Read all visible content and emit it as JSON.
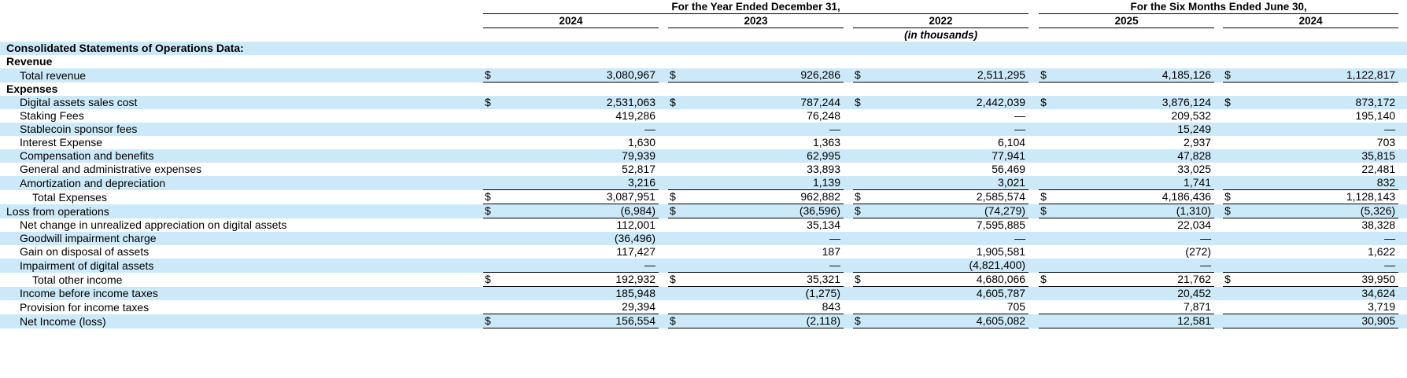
{
  "dollar_glyph": "$",
  "colors": {
    "row_highlight": "#cbe9f8",
    "rule_line": "#000000",
    "text": "#000000"
  },
  "header": {
    "group1": "For the Year Ended December 31,",
    "group2": "For the Six Months Ended June 30,",
    "years_group1": [
      "2024",
      "2023",
      "2022"
    ],
    "years_group2": [
      "2025",
      "2024"
    ],
    "units_note": "(in thousands)"
  },
  "columns": [
    "Year Ended Dec 31, 2024",
    "Year Ended Dec 31, 2023",
    "Year Ended Dec 31, 2022",
    "Six Months Ended Jun 30, 2025",
    "Six Months Ended Jun 30, 2024"
  ],
  "rows": [
    {
      "label": "Consolidated Statements of Operations Data:",
      "indent": 0,
      "bold": true,
      "shaded": true,
      "values": null,
      "dollars": null,
      "rule": false
    },
    {
      "label": "Revenue",
      "indent": 0,
      "bold": true,
      "shaded": false,
      "values": null,
      "dollars": null,
      "rule": false
    },
    {
      "label": "Total revenue",
      "indent": 1,
      "bold": false,
      "shaded": true,
      "values": [
        "3,080,967",
        "926,286",
        "2,511,295",
        "4,185,126",
        "1,122,817"
      ],
      "dollars": [
        1,
        1,
        1,
        1,
        1
      ],
      "rule": true
    },
    {
      "label": "Expenses",
      "indent": 0,
      "bold": true,
      "shaded": false,
      "values": null,
      "dollars": null,
      "rule": false
    },
    {
      "label": "Digital assets sales cost",
      "indent": 1,
      "bold": false,
      "shaded": true,
      "values": [
        "2,531,063",
        "787,244",
        "2,442,039",
        "3,876,124",
        "873,172"
      ],
      "dollars": [
        1,
        1,
        1,
        1,
        1
      ],
      "rule": false
    },
    {
      "label": "Staking Fees",
      "indent": 1,
      "bold": false,
      "shaded": false,
      "values": [
        "419,286",
        "76,248",
        "—",
        "209,532",
        "195,140"
      ],
      "dollars": null,
      "rule": false
    },
    {
      "label": "Stablecoin sponsor fees",
      "indent": 1,
      "bold": false,
      "shaded": true,
      "values": [
        "—",
        "—",
        "—",
        "15,249",
        "—"
      ],
      "dollars": null,
      "rule": false
    },
    {
      "label": "Interest Expense",
      "indent": 1,
      "bold": false,
      "shaded": false,
      "values": [
        "1,630",
        "1,363",
        "6,104",
        "2,937",
        "703"
      ],
      "dollars": null,
      "rule": false
    },
    {
      "label": "Compensation and benefits",
      "indent": 1,
      "bold": false,
      "shaded": true,
      "values": [
        "79,939",
        "62,995",
        "77,941",
        "47,828",
        "35,815"
      ],
      "dollars": null,
      "rule": false
    },
    {
      "label": "General and administrative expenses",
      "indent": 1,
      "bold": false,
      "shaded": false,
      "values": [
        "52,817",
        "33,893",
        "56,469",
        "33,025",
        "22,481"
      ],
      "dollars": null,
      "rule": false
    },
    {
      "label": "Amortization and depreciation",
      "indent": 1,
      "bold": false,
      "shaded": true,
      "values": [
        "3,216",
        "1,139",
        "3,021",
        "1,741",
        "832"
      ],
      "dollars": null,
      "rule": true
    },
    {
      "label": "Total Expenses",
      "indent": 2,
      "bold": false,
      "shaded": false,
      "values": [
        "3,087,951",
        "962,882",
        "2,585,574",
        "4,186,436",
        "1,128,143"
      ],
      "dollars": [
        1,
        1,
        1,
        1,
        1
      ],
      "rule": true
    },
    {
      "label": "Loss from operations",
      "indent": 0,
      "bold": false,
      "shaded": true,
      "values": [
        "(6,984)",
        "(36,596)",
        "(74,279)",
        "(1,310)",
        "(5,326)"
      ],
      "dollars": [
        1,
        1,
        1,
        1,
        1
      ],
      "rule": true
    },
    {
      "label": "Net change in unrealized appreciation on digital assets",
      "indent": 1,
      "bold": false,
      "shaded": false,
      "values": [
        "112,001",
        "35,134",
        "7,595,885",
        "22,034",
        "38,328"
      ],
      "dollars": null,
      "rule": false
    },
    {
      "label": "Goodwill impairment charge",
      "indent": 1,
      "bold": false,
      "shaded": true,
      "values": [
        "(36,496)",
        "—",
        "—",
        "—",
        "—"
      ],
      "dollars": null,
      "rule": false
    },
    {
      "label": "Gain on disposal of assets",
      "indent": 1,
      "bold": false,
      "shaded": false,
      "values": [
        "117,427",
        "187",
        "1,905,581",
        "(272)",
        "1,622"
      ],
      "dollars": null,
      "rule": false
    },
    {
      "label": "Impairment of digital assets",
      "indent": 1,
      "bold": false,
      "shaded": true,
      "values": [
        "—",
        "—",
        "(4,821,400)",
        "—",
        "—"
      ],
      "dollars": null,
      "rule": true
    },
    {
      "label": "Total other income",
      "indent": 2,
      "bold": false,
      "shaded": false,
      "values": [
        "192,932",
        "35,321",
        "4,680,066",
        "21,762",
        "39,950"
      ],
      "dollars": [
        1,
        1,
        1,
        1,
        1
      ],
      "rule": true
    },
    {
      "label": "Income before income taxes",
      "indent": 1,
      "bold": false,
      "shaded": true,
      "values": [
        "185,948",
        "(1,275)",
        "4,605,787",
        "20,452",
        "34,624"
      ],
      "dollars": null,
      "rule": false
    },
    {
      "label": "Provision for income taxes",
      "indent": 1,
      "bold": false,
      "shaded": false,
      "values": [
        "29,394",
        "843",
        "705",
        "7,871",
        "3,719"
      ],
      "dollars": null,
      "rule": true
    },
    {
      "label": "Net Income (loss)",
      "indent": 1,
      "bold": false,
      "shaded": true,
      "values": [
        "156,554",
        "(2,118)",
        "4,605,082",
        "12,581",
        "30,905"
      ],
      "dollars": [
        1,
        1,
        1,
        0,
        0
      ],
      "rule": true
    }
  ]
}
